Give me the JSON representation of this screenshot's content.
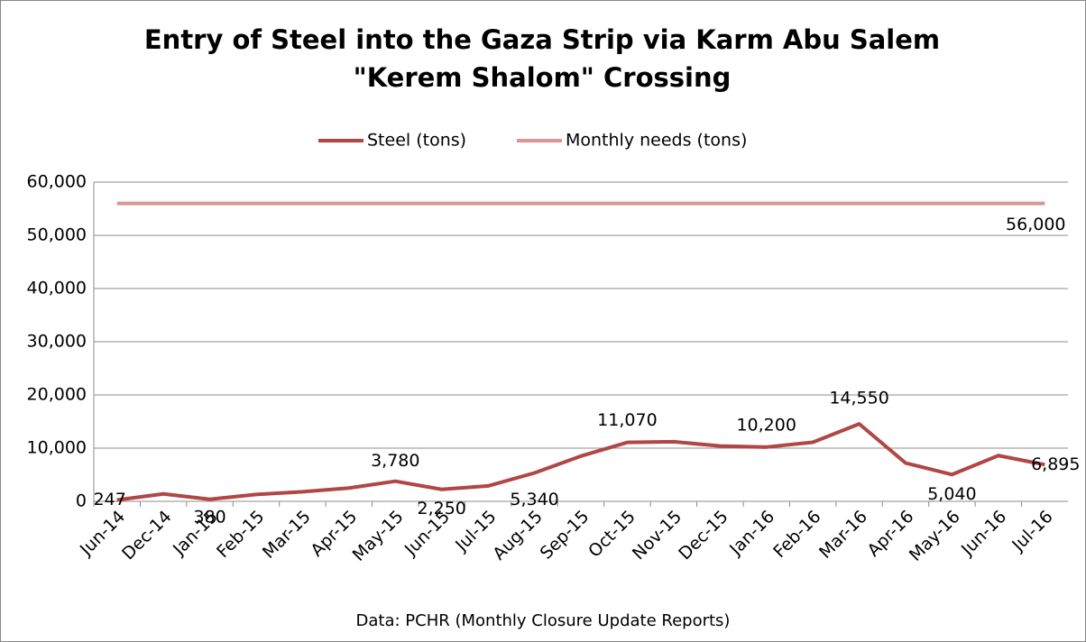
{
  "chart_data": {
    "type": "line",
    "title": "Entry of Steel into the Gaza Strip via Karm Abu Salem \"Kerem Shalom\" Crossing",
    "source": "Data: PCHR (Monthly Closure Update Reports)",
    "categories": [
      "Jun-14",
      "Dec-14",
      "Jan-15",
      "Feb-15",
      "Mar-15",
      "Apr-15",
      "May-15",
      "Jun-15",
      "Jul-15",
      "Aug-15",
      "Sep-15",
      "Oct-15",
      "Nov-15",
      "Dec-15",
      "Jan-16",
      "Feb-16",
      "Mar-16",
      "Apr-16",
      "May-16",
      "Jun-16",
      "Jul-16"
    ],
    "series": [
      {
        "name": "Steel (tons)",
        "color": "#b04645",
        "values": [
          247,
          1400,
          380,
          1300,
          1800,
          2500,
          3780,
          2250,
          2900,
          5340,
          8500,
          11070,
          11200,
          10400,
          10200,
          11100,
          14550,
          7200,
          5040,
          8600,
          6895
        ],
        "value_labels": [
          "247",
          null,
          "380",
          null,
          null,
          null,
          "3,780",
          "2,250",
          null,
          "5,340",
          null,
          "11,070",
          null,
          null,
          "10,200",
          null,
          "14,550",
          null,
          "5,040",
          null,
          "6,895"
        ]
      },
      {
        "name": "Monthly needs (tons)",
        "color": "#da9694",
        "values": [
          56000,
          56000,
          56000,
          56000,
          56000,
          56000,
          56000,
          56000,
          56000,
          56000,
          56000,
          56000,
          56000,
          56000,
          56000,
          56000,
          56000,
          56000,
          56000,
          56000,
          56000
        ],
        "value_labels": [
          null,
          null,
          null,
          null,
          null,
          null,
          null,
          null,
          null,
          null,
          null,
          null,
          null,
          null,
          null,
          null,
          null,
          null,
          null,
          null,
          "56,000"
        ]
      }
    ],
    "ylim": [
      0,
      60000
    ],
    "yticks": [
      {
        "value": 0,
        "label": "0"
      },
      {
        "value": 10000,
        "label": "10,000"
      },
      {
        "value": 20000,
        "label": "20,000"
      },
      {
        "value": 30000,
        "label": "30,000"
      },
      {
        "value": 40000,
        "label": "40,000"
      },
      {
        "value": 50000,
        "label": "50,000"
      },
      {
        "value": 60000,
        "label": "60,000"
      }
    ],
    "grid": true,
    "legend": "top"
  }
}
